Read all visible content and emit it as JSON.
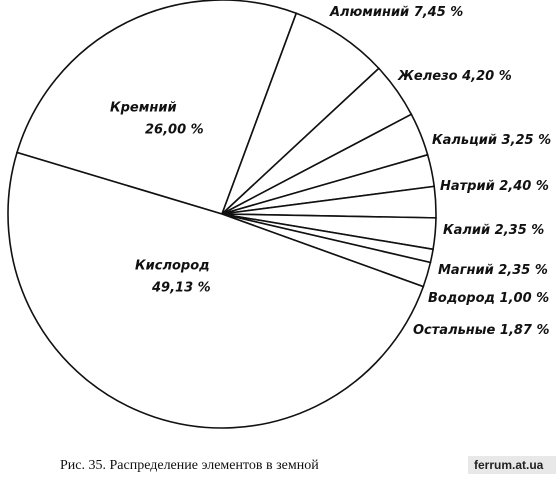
{
  "chart_data": {
    "type": "pie",
    "caption": "Рис. 35. Распределение элементов в земной",
    "watermark": "ferrum.at.ua",
    "categories": [
      "Кремний",
      "Алюминий",
      "Железо",
      "Кальций",
      "Натрий",
      "Калий",
      "Магний",
      "Водород",
      "Остальные",
      "Кислород"
    ],
    "values": [
      26.0,
      7.45,
      4.2,
      3.25,
      2.4,
      2.35,
      2.35,
      1.0,
      1.87,
      49.13
    ],
    "value_labels": [
      "26,00 %",
      "7,45 %",
      "4,20 %",
      "3,25 %",
      "2,40 %",
      "2,35 %",
      "2,35 %",
      "1,00 %",
      "1,87 %",
      "49,13 %"
    ],
    "color": "#ffffff"
  }
}
